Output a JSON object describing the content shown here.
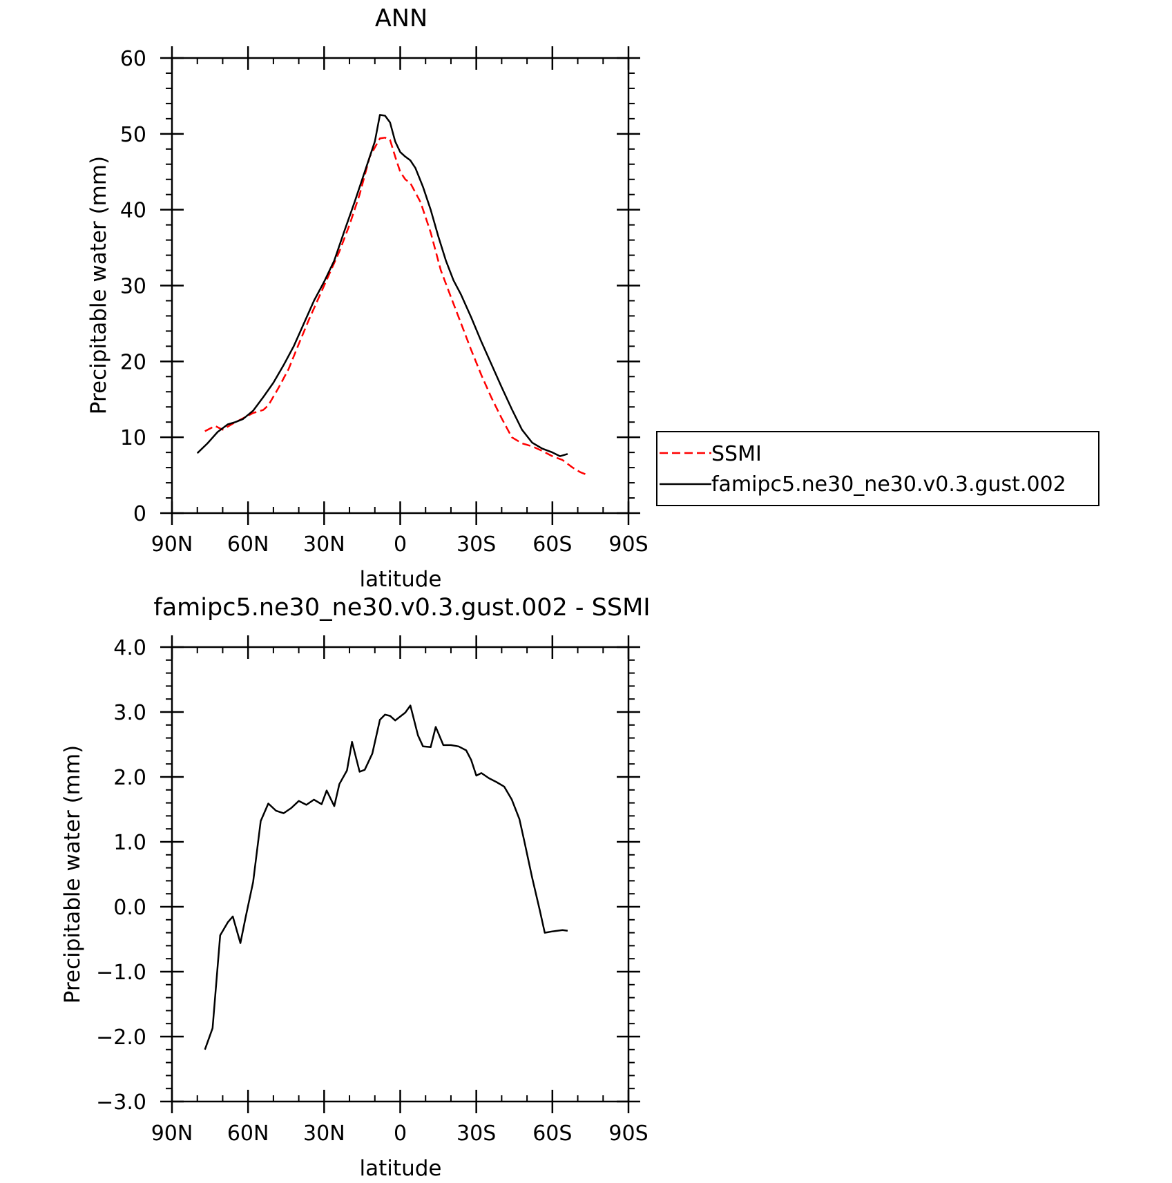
{
  "chart_data": [
    {
      "type": "line",
      "title": "ANN",
      "xlabel": "latitude",
      "ylabel": "Precipitable water (mm)",
      "xlim": [
        90,
        -90
      ],
      "ylim": [
        0,
        60
      ],
      "xticks": [
        90,
        60,
        30,
        0,
        -30,
        -60,
        -90
      ],
      "xtick_labels": [
        "90N",
        "60N",
        "30N",
        "0",
        "30S",
        "60S",
        "90S"
      ],
      "yticks": [
        0,
        10,
        20,
        30,
        40,
        50,
        60
      ],
      "ytick_labels": [
        "0",
        "10",
        "20",
        "30",
        "40",
        "50",
        "60"
      ],
      "grid": false,
      "legend_position": "right",
      "series": [
        {
          "name": "SSMI",
          "color": "#ff0000",
          "style": "dashed",
          "x": [
            77,
            73,
            70,
            66,
            62,
            58,
            54,
            52,
            48,
            44,
            40,
            36,
            32,
            28,
            24,
            20,
            16,
            12,
            8,
            6,
            4,
            2,
            0,
            -2,
            -4,
            -8,
            -12,
            -16,
            -20,
            -24,
            -28,
            -32,
            -36,
            -40,
            -44,
            -48,
            -52,
            -56,
            -60,
            -64,
            -68,
            -71,
            -74
          ],
          "y": [
            10.8,
            11.5,
            11.0,
            11.8,
            12.5,
            13.2,
            13.6,
            14.2,
            16.5,
            19.0,
            22.3,
            25.5,
            28.5,
            31.5,
            34.5,
            38.0,
            42.0,
            47.0,
            49.4,
            49.5,
            49.2,
            47.0,
            45.0,
            44.0,
            43.5,
            41.0,
            37.0,
            32.0,
            28.5,
            25.0,
            21.5,
            18.2,
            15.2,
            12.5,
            10.0,
            9.2,
            8.8,
            8.2,
            7.5,
            7.0,
            6.0,
            5.4,
            5.0
          ]
        },
        {
          "name": "famipc5.ne30_ne30.v0.3.gust.002",
          "color": "#000000",
          "style": "solid",
          "x": [
            80,
            76,
            72,
            68,
            65,
            62,
            58,
            54,
            50,
            46,
            42,
            38,
            34,
            30,
            26,
            22,
            18,
            14,
            10,
            8,
            6,
            4,
            2,
            0,
            -2,
            -4,
            -6,
            -9,
            -12,
            -15,
            -18,
            -21,
            -24,
            -28,
            -32,
            -36,
            -40,
            -44,
            -48,
            -52,
            -56,
            -60,
            -63,
            -66
          ],
          "y": [
            7.9,
            9.2,
            10.7,
            11.7,
            12.0,
            12.4,
            13.5,
            15.3,
            17.2,
            19.5,
            22.0,
            25.0,
            28.0,
            30.5,
            33.3,
            37.2,
            41.0,
            45.0,
            49.0,
            52.5,
            52.4,
            51.5,
            49.0,
            47.6,
            47.0,
            46.5,
            45.5,
            43.0,
            40.0,
            36.5,
            33.3,
            30.7,
            28.8,
            25.8,
            22.6,
            19.6,
            16.6,
            13.7,
            11.0,
            9.3,
            8.5,
            8.0,
            7.5,
            7.8
          ]
        }
      ]
    },
    {
      "type": "line",
      "title": "famipc5.ne30_ne30.v0.3.gust.002 - SSMI",
      "xlabel": "latitude",
      "ylabel": "Precipitable water (mm)",
      "xlim": [
        90,
        -90
      ],
      "ylim": [
        -3.0,
        4.0
      ],
      "xticks": [
        90,
        60,
        30,
        0,
        -30,
        -60,
        -90
      ],
      "xtick_labels": [
        "90N",
        "60N",
        "30N",
        "0",
        "30S",
        "60S",
        "90S"
      ],
      "yticks": [
        -3,
        -2,
        -1,
        0,
        1,
        2,
        3,
        4
      ],
      "ytick_labels": [
        "−3.0",
        "−2.0",
        "−1.0",
        "0.0",
        "1.0",
        "2.0",
        "3.0",
        "4.0"
      ],
      "grid": false,
      "series": [
        {
          "color": "#000000",
          "style": "solid",
          "x": [
            77,
            74,
            71,
            68,
            66,
            63,
            61,
            58,
            55,
            52,
            49,
            46,
            43,
            40,
            37,
            34,
            31,
            29,
            26,
            24,
            21,
            19,
            16,
            14,
            11,
            8,
            6,
            4,
            2,
            -2,
            -4,
            -7,
            -9,
            -12,
            -14,
            -17,
            -20,
            -23,
            -26,
            -28,
            -30,
            -32,
            -35,
            -38,
            -41,
            -44,
            -47,
            -49,
            -52,
            -55,
            -57,
            -60,
            -64,
            -66
          ],
          "y": [
            -2.2,
            -1.87,
            -0.44,
            -0.24,
            -0.15,
            -0.56,
            -0.17,
            0.38,
            1.32,
            1.59,
            1.48,
            1.44,
            1.52,
            1.63,
            1.57,
            1.65,
            1.58,
            1.79,
            1.55,
            1.89,
            2.1,
            2.54,
            2.08,
            2.11,
            2.36,
            2.88,
            2.96,
            2.94,
            2.87,
            2.99,
            3.1,
            2.64,
            2.47,
            2.46,
            2.77,
            2.49,
            2.49,
            2.47,
            2.41,
            2.26,
            2.02,
            2.06,
            1.98,
            1.92,
            1.85,
            1.65,
            1.35,
            1.0,
            0.45,
            -0.05,
            -0.4,
            -0.38,
            -0.36,
            -0.37
          ]
        }
      ]
    }
  ]
}
